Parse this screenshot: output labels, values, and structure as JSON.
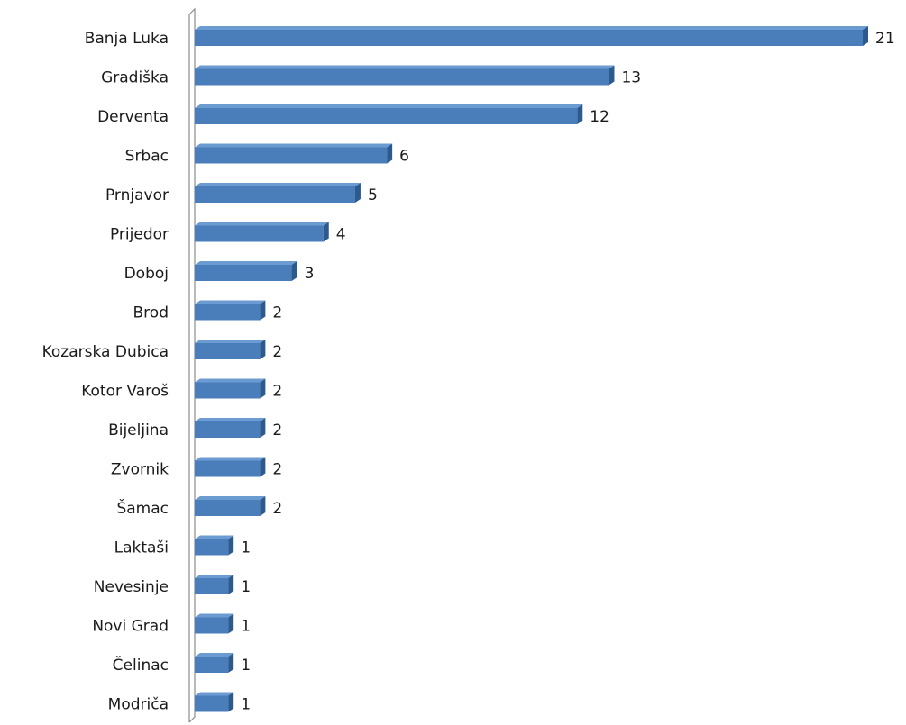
{
  "chart_data": {
    "type": "bar",
    "orientation": "horizontal",
    "categories": [
      "Banja Luka",
      "Gradiška",
      "Derventa",
      "Srbac",
      "Prnjavor",
      "Prijedor",
      "Doboj",
      "Brod",
      "Kozarska Dubica",
      "Kotor Varoš",
      "Bijeljina",
      "Zvornik",
      "Šamac",
      "Laktaši",
      "Nevesinje",
      "Novi Grad",
      "Čelinac",
      "Modriča"
    ],
    "values": [
      21,
      13,
      12,
      6,
      5,
      4,
      3,
      2,
      2,
      2,
      2,
      2,
      2,
      1,
      1,
      1,
      1,
      1
    ],
    "data_labels": [
      "21",
      "13",
      "12",
      "6",
      "5",
      "4",
      "3",
      "2",
      "2",
      "2",
      "2",
      "2",
      "2",
      "1",
      "1",
      "1",
      "1",
      "1"
    ],
    "xlim": [
      0,
      21
    ],
    "grid": false,
    "legend": "none",
    "bar_style": "3d",
    "colors": {
      "bar_front": "#4a7ebb",
      "bar_top": "#6c9bd2",
      "bar_side": "#2d5a8e",
      "axis": "#8c8c8c"
    }
  }
}
